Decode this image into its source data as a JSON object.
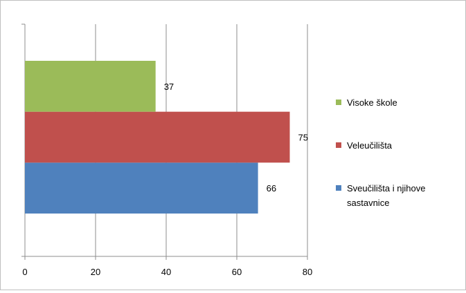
{
  "chart_data": {
    "type": "bar",
    "orientation": "horizontal",
    "stacking": "none",
    "grid": true,
    "legend_position": "right",
    "xlim": [
      0,
      80
    ],
    "x_ticks": [
      0,
      20,
      40,
      60,
      80
    ],
    "series": [
      {
        "name": "Sveučilišta i njihove sastavnice",
        "values": [
          66
        ],
        "color": "#4f81bd"
      },
      {
        "name": "Veleučilišta",
        "values": [
          75
        ],
        "color": "#c0504d"
      },
      {
        "name": "Visoke škole",
        "values": [
          37
        ],
        "color": "#9bbb59"
      }
    ],
    "legend_order": [
      "Visoke škole",
      "Veleučilišta",
      "Sveučilišta i njihove sastavnice"
    ],
    "legend_labels": [
      [
        "Visoke škole"
      ],
      [
        "Veleučilišta"
      ],
      [
        "Sveučilišta i njihove",
        "sastavnice"
      ]
    ]
  }
}
